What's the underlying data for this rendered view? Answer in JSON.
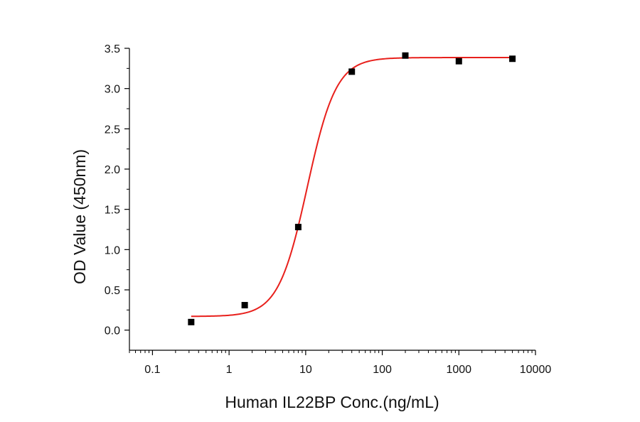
{
  "chart_data": {
    "type": "scatter",
    "title": "",
    "xlabel": "Human IL22BP Conc.(ng/mL)",
    "ylabel": "OD Value (450nm)",
    "xscale": "log",
    "xlim": [
      0.05,
      10000
    ],
    "ylim": [
      -0.25,
      3.5
    ],
    "x_ticks": [
      0.1,
      1,
      10,
      100,
      1000,
      10000
    ],
    "x_tick_labels": [
      "0.1",
      "1",
      "10",
      "100",
      "1000",
      "10000"
    ],
    "y_ticks": [
      0.0,
      0.5,
      1.0,
      1.5,
      2.0,
      2.5,
      3.0,
      3.5
    ],
    "y_tick_labels": [
      "0.0",
      "0.5",
      "1.0",
      "1.5",
      "2.0",
      "2.5",
      "3.0",
      "3.5"
    ],
    "grid": false,
    "legend": "none",
    "series": [
      {
        "kind": "points",
        "marker": "square",
        "color": "#000000",
        "x": [
          0.32,
          1.6,
          8,
          40,
          200,
          1000,
          5000
        ],
        "y": [
          0.1,
          0.31,
          1.28,
          3.21,
          3.41,
          3.34,
          3.37
        ]
      },
      {
        "kind": "fit-curve",
        "model": "4PL",
        "color": "#e8201c",
        "x_range": [
          0.32,
          5000
        ],
        "params": {
          "bottom": 0.17,
          "top": 3.385,
          "ec50": 10.5,
          "hill": 2.3
        }
      }
    ]
  }
}
